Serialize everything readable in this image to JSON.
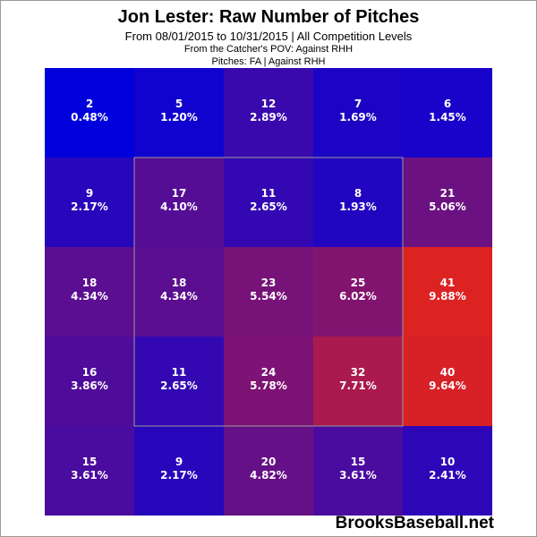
{
  "header": {
    "title": "Jon Lester: Raw Number of Pitches",
    "subtitle": "From 08/01/2015 to 10/31/2015 | All Competition Levels",
    "pov": "From the Catcher's POV:  Against RHH",
    "filter": "Pitches:  FA  |  Against RHH"
  },
  "brand": "BrooksBaseball.net",
  "chart_data": {
    "type": "heatmap",
    "title": "Jon Lester: Raw Number of Pitches",
    "rows": 5,
    "cols": 5,
    "strike_zone": "inner 3x3 cells",
    "colors": {
      "low": "#0000dd",
      "high": "#dd2222"
    },
    "cells": [
      [
        {
          "count": 2,
          "pct": "0.48%"
        },
        {
          "count": 5,
          "pct": "1.20%"
        },
        {
          "count": 12,
          "pct": "2.89%"
        },
        {
          "count": 7,
          "pct": "1.69%"
        },
        {
          "count": 6,
          "pct": "1.45%"
        }
      ],
      [
        {
          "count": 9,
          "pct": "2.17%"
        },
        {
          "count": 17,
          "pct": "4.10%"
        },
        {
          "count": 11,
          "pct": "2.65%"
        },
        {
          "count": 8,
          "pct": "1.93%"
        },
        {
          "count": 21,
          "pct": "5.06%"
        }
      ],
      [
        {
          "count": 18,
          "pct": "4.34%"
        },
        {
          "count": 18,
          "pct": "4.34%"
        },
        {
          "count": 23,
          "pct": "5.54%"
        },
        {
          "count": 25,
          "pct": "6.02%"
        },
        {
          "count": 41,
          "pct": "9.88%"
        }
      ],
      [
        {
          "count": 16,
          "pct": "3.86%"
        },
        {
          "count": 11,
          "pct": "2.65%"
        },
        {
          "count": 24,
          "pct": "5.78%"
        },
        {
          "count": 32,
          "pct": "7.71%"
        },
        {
          "count": 40,
          "pct": "9.64%"
        }
      ],
      [
        {
          "count": 15,
          "pct": "3.61%"
        },
        {
          "count": 9,
          "pct": "2.17%"
        },
        {
          "count": 20,
          "pct": "4.82%"
        },
        {
          "count": 15,
          "pct": "3.61%"
        },
        {
          "count": 10,
          "pct": "2.41%"
        }
      ]
    ]
  }
}
